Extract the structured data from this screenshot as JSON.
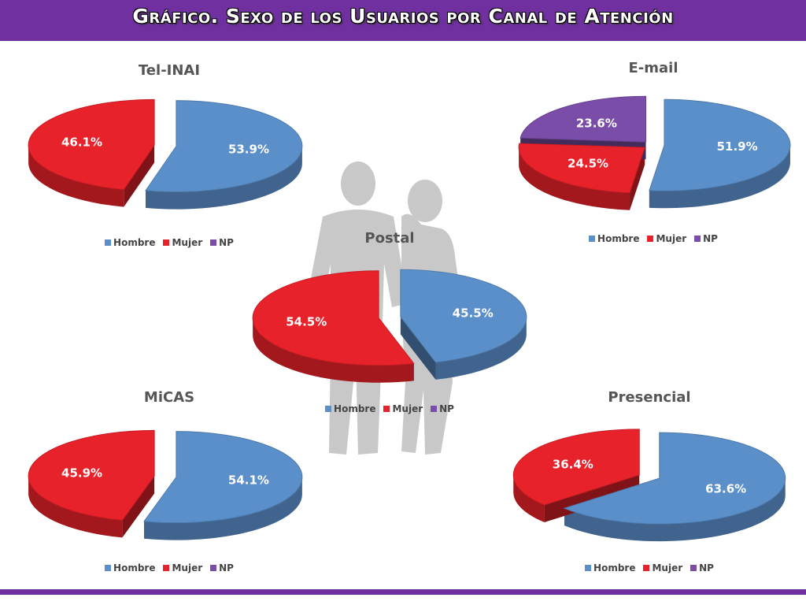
{
  "header": {
    "title": "Gráfico. Sexo de los Usuarios por Canal de Atención"
  },
  "colors": {
    "Hombre": "#5b8fc9",
    "Mujer": "#e8222a",
    "NP": "#7a4ea8",
    "header": "#7030a0"
  },
  "chart_data": [
    {
      "type": "pie",
      "title": "Tel-INAI",
      "slices": [
        {
          "name": "Hombre",
          "value": 53.9,
          "label": "53.9%"
        },
        {
          "name": "Mujer",
          "value": 46.1,
          "label": "46.1%"
        }
      ],
      "legend": [
        "Hombre",
        "Mujer",
        "NP"
      ],
      "legend_position": "bottom"
    },
    {
      "type": "pie",
      "title": "E-mail",
      "slices": [
        {
          "name": "Hombre",
          "value": 51.9,
          "label": "51.9%"
        },
        {
          "name": "Mujer",
          "value": 24.5,
          "label": "24.5%"
        },
        {
          "name": "NP",
          "value": 23.6,
          "label": "23.6%"
        }
      ],
      "legend": [
        "Hombre",
        "Mujer",
        "NP"
      ],
      "legend_position": "bottom"
    },
    {
      "type": "pie",
      "title": "Postal",
      "slices": [
        {
          "name": "Hombre",
          "value": 45.5,
          "label": "45.5%"
        },
        {
          "name": "Mujer",
          "value": 54.5,
          "label": "54.5%"
        }
      ],
      "legend": [
        "Hombre",
        "Mujer",
        "NP"
      ],
      "legend_position": "bottom"
    },
    {
      "type": "pie",
      "title": "MiCAS",
      "slices": [
        {
          "name": "Hombre",
          "value": 54.1,
          "label": "54.1%"
        },
        {
          "name": "Mujer",
          "value": 45.9,
          "label": "45.9%"
        }
      ],
      "legend": [
        "Hombre",
        "Mujer",
        "NP"
      ],
      "legend_position": "bottom"
    },
    {
      "type": "pie",
      "title": "Presencial",
      "slices": [
        {
          "name": "Hombre",
          "value": 63.6,
          "label": "63.6%"
        },
        {
          "name": "Mujer",
          "value": 36.4,
          "label": "36.4%"
        }
      ],
      "legend": [
        "Hombre",
        "Mujer",
        "NP"
      ],
      "legend_position": "bottom"
    }
  ]
}
